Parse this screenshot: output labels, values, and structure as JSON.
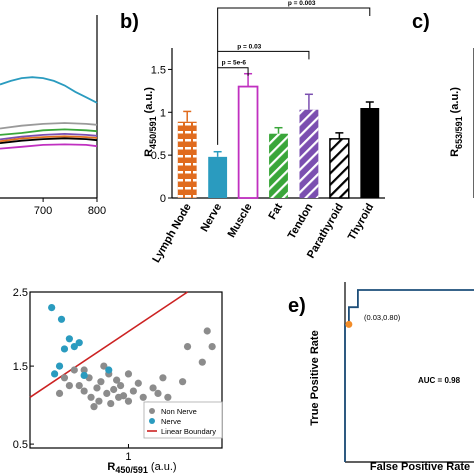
{
  "panels": {
    "b_letter": "b)",
    "c_letter": "c)",
    "e_letter": "e)"
  },
  "chart_data": [
    {
      "id": "spectra",
      "type": "line",
      "x_ticks": [
        "700",
        "800"
      ],
      "xlim": [
        620,
        800
      ],
      "series": [
        {
          "color": "#2a9bbf",
          "x": [
            620,
            640,
            660,
            680,
            700,
            720,
            740,
            760,
            780,
            800
          ],
          "y": [
            0.62,
            0.64,
            0.655,
            0.66,
            0.655,
            0.64,
            0.615,
            0.58,
            0.55,
            0.52
          ]
        },
        {
          "color": "#9a9a9a",
          "x": [
            620,
            660,
            700,
            740,
            780,
            800
          ],
          "y": [
            0.38,
            0.395,
            0.405,
            0.41,
            0.405,
            0.4
          ]
        },
        {
          "color": "#3aa63a",
          "x": [
            620,
            660,
            700,
            740,
            780,
            800
          ],
          "y": [
            0.345,
            0.355,
            0.37,
            0.375,
            0.37,
            0.365
          ]
        },
        {
          "color": "#7b4fb0",
          "x": [
            620,
            660,
            700,
            740,
            780,
            800
          ],
          "y": [
            0.32,
            0.335,
            0.345,
            0.35,
            0.345,
            0.34
          ]
        },
        {
          "color": "#e07020",
          "x": [
            620,
            660,
            700,
            740,
            780,
            800
          ],
          "y": [
            0.31,
            0.325,
            0.333,
            0.337,
            0.333,
            0.328
          ]
        },
        {
          "color": "#000000",
          "x": [
            620,
            660,
            700,
            740,
            780,
            800
          ],
          "y": [
            0.3,
            0.313,
            0.322,
            0.326,
            0.322,
            0.316
          ]
        },
        {
          "color": "#c030c0",
          "x": [
            620,
            660,
            700,
            740,
            780,
            800
          ],
          "y": [
            0.27,
            0.28,
            0.29,
            0.293,
            0.29,
            0.283
          ]
        }
      ]
    },
    {
      "id": "bars_b",
      "type": "bar",
      "ylabel_main": "R",
      "ylabel_sub": "450/591",
      "ylabel_unit": "(a.u.)",
      "ylim": [
        0,
        1.75
      ],
      "y_ticks": [
        "0",
        "0.5",
        "1",
        "1.5"
      ],
      "categories": [
        "Lymph Node",
        "Nerve",
        "Muscle",
        "Fat",
        "Tendon",
        "Parathyroid",
        "Thyroid"
      ],
      "values": [
        0.89,
        0.48,
        1.3,
        0.75,
        1.03,
        0.69,
        1.05
      ],
      "errors": [
        0.12,
        0.06,
        0.15,
        0.07,
        0.18,
        0.07,
        0.07
      ],
      "colors": [
        "#e06b1e",
        "#2a9bbf",
        "#c030c0",
        "#3aa63a",
        "#7b4fb0",
        "#000000",
        "#000000"
      ],
      "comparisons": [
        {
          "label": "p = 5e-6",
          "from": 1,
          "to": 2
        },
        {
          "label": "p = 0.03",
          "from": 1,
          "to": 4
        },
        {
          "label": "p = 0.003",
          "from": 1,
          "to": 6
        }
      ]
    },
    {
      "id": "bars_c",
      "type": "bar",
      "ylabel_main": "R",
      "ylabel_sub": "653/591",
      "ylabel_unit": "(a.u.)"
    },
    {
      "id": "scatter_d",
      "type": "scatter",
      "xlabel_main": "R",
      "xlabel_sub": "450/591",
      "xlabel_unit": "(a.u.)",
      "xlim": [
        0,
        1.95
      ],
      "ylim": [
        0.45,
        2.45
      ],
      "x_ticks": [
        "1"
      ],
      "y_ticks": [
        "2.5",
        "1.5",
        "0.5"
      ],
      "series": [
        {
          "name": "Non Nerve",
          "color": "#8c8c8c",
          "points": [
            [
              0.35,
              1.35
            ],
            [
              0.45,
              1.45
            ],
            [
              0.5,
              1.25
            ],
            [
              0.55,
              1.18
            ],
            [
              0.6,
              1.35
            ],
            [
              0.62,
              1.1
            ],
            [
              0.68,
              1.22
            ],
            [
              0.7,
              1.05
            ],
            [
              0.72,
              1.3
            ],
            [
              0.78,
              1.15
            ],
            [
              0.8,
              1.4
            ],
            [
              0.82,
              1.02
            ],
            [
              0.85,
              1.2
            ],
            [
              0.88,
              1.32
            ],
            [
              0.9,
              1.1
            ],
            [
              0.92,
              1.25
            ],
            [
              0.95,
              1.12
            ],
            [
              1.0,
              1.05
            ],
            [
              1.05,
              1.18
            ],
            [
              1.1,
              1.28
            ],
            [
              1.15,
              1.1
            ],
            [
              1.2,
              1.0
            ],
            [
              1.25,
              1.22
            ],
            [
              1.3,
              1.15
            ],
            [
              1.35,
              1.35
            ],
            [
              0.65,
              0.98
            ],
            [
              0.75,
              1.5
            ],
            [
              0.3,
              1.15
            ],
            [
              0.55,
              1.45
            ],
            [
              0.4,
              1.25
            ],
            [
              1.55,
              1.3
            ],
            [
              1.75,
              1.55
            ],
            [
              1.8,
              1.95
            ],
            [
              1.85,
              1.75
            ],
            [
              1.6,
              1.75
            ],
            [
              1.4,
              1.1
            ],
            [
              1.0,
              1.4
            ]
          ]
        },
        {
          "name": "Nerve",
          "color": "#2a9bbf",
          "points": [
            [
              0.22,
              2.25
            ],
            [
              0.32,
              2.1
            ],
            [
              0.35,
              1.72
            ],
            [
              0.4,
              1.85
            ],
            [
              0.45,
              1.75
            ],
            [
              0.5,
              1.8
            ],
            [
              0.25,
              1.4
            ],
            [
              0.3,
              1.5
            ],
            [
              0.8,
              1.45
            ],
            [
              0.55,
              1.38
            ]
          ]
        },
        {
          "name": "Linear Boundary",
          "color": "#cc2222",
          "line": [
            [
              0,
              1.1
            ],
            [
              1.6,
              2.45
            ]
          ]
        }
      ]
    },
    {
      "id": "roc_e",
      "type": "line",
      "ylabel": "True Positive Rate",
      "xlabel": "False Positive Rate",
      "xlim": [
        0,
        1
      ],
      "ylim": [
        0,
        1
      ],
      "curve": [
        [
          0,
          0
        ],
        [
          0,
          0.8
        ],
        [
          0.03,
          0.8
        ],
        [
          0.03,
          0.9
        ],
        [
          0.1,
          0.9
        ],
        [
          0.1,
          1.0
        ],
        [
          1,
          1.0
        ]
      ],
      "marker": {
        "x": 0.03,
        "y": 0.8,
        "color": "#f28c28"
      },
      "marker_label": "(0.03,0.80)",
      "annotation": "AUC = 0.98"
    }
  ]
}
